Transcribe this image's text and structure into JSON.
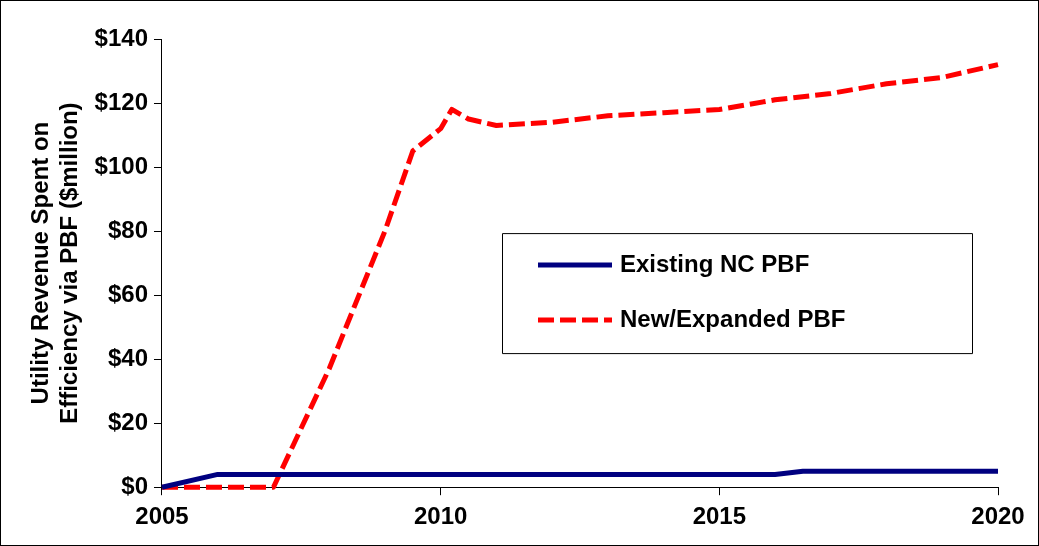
{
  "chart_data": {
    "type": "line",
    "ylabel": "Utility Revenue Spent on\nEfficiency via PBF ($million)",
    "xlim": [
      2005,
      2020
    ],
    "xticks": [
      2005,
      2010,
      2015,
      2020
    ],
    "ylim": [
      0,
      140
    ],
    "yticks": [
      {
        "value": 0,
        "label": "$0"
      },
      {
        "value": 20,
        "label": "$20"
      },
      {
        "value": 40,
        "label": "$40"
      },
      {
        "value": 60,
        "label": "$60"
      },
      {
        "value": 80,
        "label": "$80"
      },
      {
        "value": 100,
        "label": "$100"
      },
      {
        "value": 120,
        "label": "$120"
      },
      {
        "value": 140,
        "label": "$140"
      }
    ],
    "grid": false,
    "legend": "right",
    "marker": "none",
    "series": [
      {
        "name": "Existing NC PBF",
        "color": "#000080",
        "line_style": "solid",
        "x": [
          2005,
          2006,
          2016,
          2016.5,
          2020
        ],
        "values": [
          0,
          4,
          4,
          5,
          5
        ]
      },
      {
        "name": "New/Expanded PBF",
        "color": "#ff0000",
        "line_style": "dashed",
        "x": [
          2005,
          2006,
          2007,
          2008,
          2009,
          2009.5,
          2010,
          2010.2,
          2010.5,
          2011,
          2012,
          2013,
          2014,
          2015,
          2016,
          2017,
          2018,
          2019,
          2020
        ],
        "values": [
          0,
          0,
          0,
          37,
          80,
          105,
          112,
          118,
          115,
          113,
          114,
          116,
          117,
          118,
          121,
          123,
          126,
          128,
          132
        ]
      }
    ]
  }
}
